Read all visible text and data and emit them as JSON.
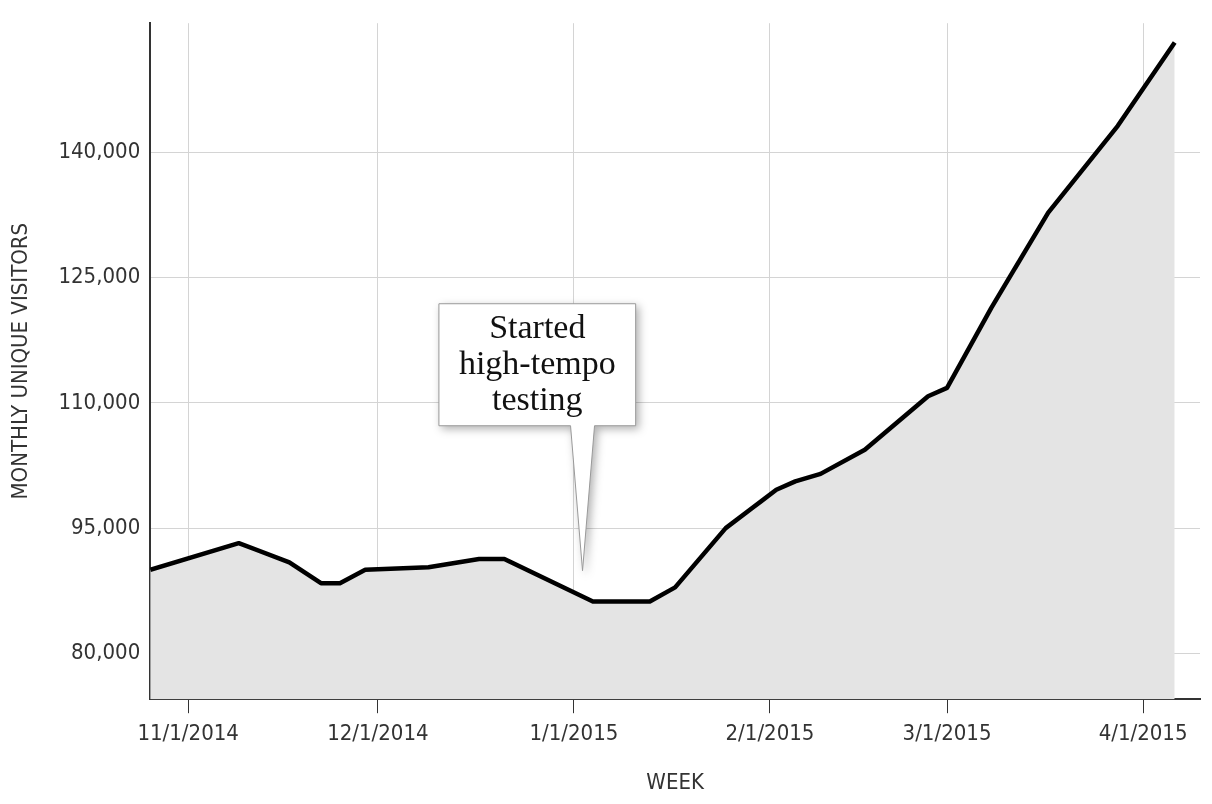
{
  "chart_data": {
    "type": "area",
    "xlabel": "WEEK",
    "ylabel": "MONTHLY UNIQUE VISITORS",
    "x": [
      "2014-10-26",
      "2014-11-09",
      "2014-11-17",
      "2014-11-22",
      "2014-11-25",
      "2014-11-29",
      "2014-12-09",
      "2014-12-17",
      "2014-12-21",
      "2015-01-04",
      "2015-01-13",
      "2015-01-17",
      "2015-01-25",
      "2015-02-02",
      "2015-02-05",
      "2015-02-09",
      "2015-02-16",
      "2015-02-26",
      "2015-03-01",
      "2015-03-08",
      "2015-03-17",
      "2015-03-28",
      "2015-04-06"
    ],
    "series": [
      {
        "color": "#000000",
        "values": [
          90000,
          93200,
          90900,
          88400,
          88400,
          90000,
          90300,
          91300,
          91300,
          86200,
          86200,
          87900,
          95000,
          99600,
          100600,
          101500,
          104400,
          110800,
          111800,
          121400,
          132800,
          143200,
          153200
        ]
      }
    ],
    "xlim": [
      "2014-10-26",
      "2015-04-10"
    ],
    "xticks": [
      {
        "value": "2014-11-01",
        "label": "11/1/2014"
      },
      {
        "value": "2014-12-01",
        "label": "12/1/2014"
      },
      {
        "value": "2015-01-01",
        "label": "1/1/2015"
      },
      {
        "value": "2015-02-01",
        "label": "2/1/2015"
      },
      {
        "value": "2015-03-01",
        "label": "3/1/2015"
      },
      {
        "value": "2015-04-01",
        "label": "4/1/2015"
      }
    ],
    "ylim": [
      74500,
      155500
    ],
    "yticks": [
      {
        "value": 80000,
        "label": "80,000"
      },
      {
        "value": 95000,
        "label": "95,000"
      },
      {
        "value": 110000,
        "label": "110,000"
      },
      {
        "value": 125000,
        "label": "125,000"
      },
      {
        "value": 140000,
        "label": "140,000"
      }
    ],
    "annotations": [
      "Started\nhigh-tempo\ntesting"
    ],
    "grid": true,
    "legend": false,
    "marker": "none",
    "line_style": "solid"
  }
}
